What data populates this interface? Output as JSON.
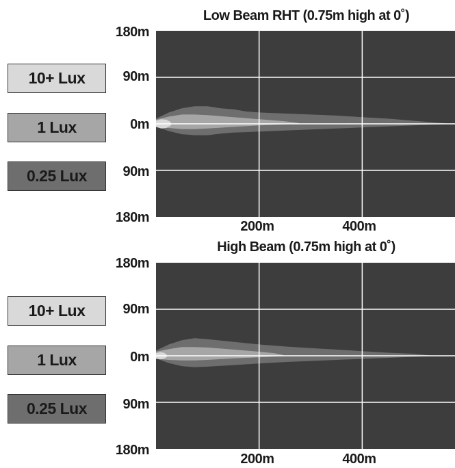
{
  "chart_data": [
    {
      "type": "area",
      "title": "Low Beam RHT (0.75m high at 0˚)",
      "xlabel": "",
      "ylabel": "",
      "x_ticks": [
        "200m",
        "400m"
      ],
      "y_ticks": [
        "180m",
        "90m",
        "0m",
        "90m",
        "180m"
      ],
      "xlim": [
        0,
        580
      ],
      "ylim": [
        -180,
        180
      ],
      "grid": true,
      "legend_position": "left",
      "legend": [
        {
          "label": "10+ Lux",
          "color": "#d9d9d9"
        },
        {
          "label": "1 Lux",
          "color": "#a6a6a6"
        },
        {
          "label": "0.25 Lux",
          "color": "#6e6e6e"
        }
      ],
      "series": [
        {
          "name": "0.25 Lux",
          "color": "#6e6e6e",
          "upper": [
            [
              0,
              10
            ],
            [
              25,
              22
            ],
            [
              50,
              30
            ],
            [
              75,
              34
            ],
            [
              100,
              34
            ],
            [
              125,
              30
            ],
            [
              150,
              28
            ],
            [
              175,
              24
            ],
            [
              200,
              22
            ],
            [
              250,
              20
            ],
            [
              300,
              18
            ],
            [
              350,
              16
            ],
            [
              400,
              13
            ],
            [
              450,
              10
            ],
            [
              500,
              6
            ],
            [
              550,
              2
            ],
            [
              575,
              0
            ]
          ],
          "lower": [
            [
              0,
              -5
            ],
            [
              25,
              -14
            ],
            [
              50,
              -20
            ],
            [
              75,
              -22
            ],
            [
              100,
              -22
            ],
            [
              125,
              -19
            ],
            [
              150,
              -17
            ],
            [
              175,
              -16
            ],
            [
              200,
              -15
            ],
            [
              250,
              -13
            ],
            [
              300,
              -11
            ],
            [
              350,
              -9
            ],
            [
              400,
              -7
            ],
            [
              450,
              -5
            ],
            [
              500,
              -3
            ],
            [
              550,
              -1
            ],
            [
              575,
              0
            ]
          ]
        },
        {
          "name": "1 Lux",
          "color": "#a6a6a6",
          "upper": [
            [
              0,
              8
            ],
            [
              25,
              14
            ],
            [
              50,
              18
            ],
            [
              75,
              18
            ],
            [
              100,
              17
            ],
            [
              150,
              13
            ],
            [
              200,
              9
            ],
            [
              250,
              5
            ],
            [
              275,
              2
            ],
            [
              280,
              0
            ]
          ],
          "lower": [
            [
              0,
              -6
            ],
            [
              25,
              -8
            ],
            [
              50,
              -10
            ],
            [
              75,
              -10
            ],
            [
              100,
              -9
            ],
            [
              150,
              -6
            ],
            [
              200,
              -3
            ],
            [
              250,
              -1
            ],
            [
              280,
              0
            ]
          ]
        },
        {
          "name": "10+ Lux",
          "color": "#d9d9d9",
          "upper": [
            [
              0,
              6
            ],
            [
              10,
              9
            ],
            [
              20,
              8
            ],
            [
              28,
              4
            ],
            [
              30,
              0
            ]
          ],
          "lower": [
            [
              0,
              -6
            ],
            [
              10,
              -9
            ],
            [
              20,
              -8
            ],
            [
              28,
              -4
            ],
            [
              30,
              0
            ]
          ]
        }
      ]
    },
    {
      "type": "area",
      "title": "High Beam (0.75m high at 0˚)",
      "xlabel": "",
      "ylabel": "",
      "x_ticks": [
        "200m",
        "400m"
      ],
      "y_ticks": [
        "180m",
        "90m",
        "0m",
        "90m",
        "180m"
      ],
      "xlim": [
        0,
        580
      ],
      "ylim": [
        -180,
        180
      ],
      "grid": true,
      "legend_position": "left",
      "legend": [
        {
          "label": "10+ Lux",
          "color": "#d9d9d9"
        },
        {
          "label": "1 Lux",
          "color": "#a6a6a6"
        },
        {
          "label": "0.25 Lux",
          "color": "#6e6e6e"
        }
      ],
      "series": [
        {
          "name": "0.25 Lux",
          "color": "#6e6e6e",
          "upper": [
            [
              0,
              10
            ],
            [
              25,
              22
            ],
            [
              50,
              30
            ],
            [
              75,
              34
            ],
            [
              100,
              32
            ],
            [
              150,
              27
            ],
            [
              200,
              22
            ],
            [
              250,
              18
            ],
            [
              300,
              15
            ],
            [
              350,
              12
            ],
            [
              400,
              9
            ],
            [
              450,
              6
            ],
            [
              500,
              4
            ],
            [
              520,
              2
            ],
            [
              540,
              0
            ]
          ],
          "lower": [
            [
              0,
              -5
            ],
            [
              25,
              -14
            ],
            [
              50,
              -20
            ],
            [
              75,
              -22
            ],
            [
              100,
              -21
            ],
            [
              150,
              -18
            ],
            [
              200,
              -15
            ],
            [
              250,
              -12
            ],
            [
              300,
              -10
            ],
            [
              350,
              -8
            ],
            [
              400,
              -6
            ],
            [
              450,
              -4
            ],
            [
              500,
              -2
            ],
            [
              540,
              0
            ]
          ]
        },
        {
          "name": "1 Lux",
          "color": "#a6a6a6",
          "upper": [
            [
              0,
              8
            ],
            [
              25,
              13
            ],
            [
              50,
              17
            ],
            [
              75,
              17
            ],
            [
              100,
              16
            ],
            [
              150,
              12
            ],
            [
              200,
              8
            ],
            [
              230,
              5
            ],
            [
              245,
              2
            ],
            [
              250,
              0
            ]
          ],
          "lower": [
            [
              0,
              -6
            ],
            [
              25,
              -8
            ],
            [
              50,
              -9
            ],
            [
              75,
              -9
            ],
            [
              100,
              -8
            ],
            [
              150,
              -5
            ],
            [
              200,
              -3
            ],
            [
              240,
              -1
            ],
            [
              250,
              0
            ]
          ]
        },
        {
          "name": "10+ Lux",
          "color": "#d9d9d9",
          "upper": [
            [
              0,
              5
            ],
            [
              8,
              7
            ],
            [
              15,
              6
            ],
            [
              20,
              3
            ],
            [
              22,
              0
            ]
          ],
          "lower": [
            [
              0,
              -5
            ],
            [
              8,
              -7
            ],
            [
              15,
              -6
            ],
            [
              20,
              -3
            ],
            [
              22,
              0
            ]
          ]
        }
      ]
    }
  ]
}
